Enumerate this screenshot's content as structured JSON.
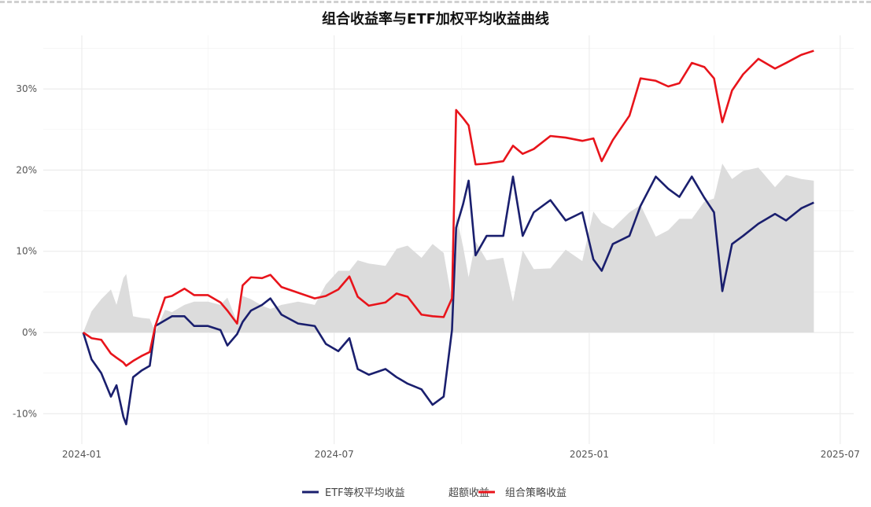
{
  "chart_data": {
    "type": "line",
    "title": "组合收益率与ETF加权平均收益曲线",
    "xlabel": "",
    "ylabel": "",
    "x_ticks": [
      "2024-01",
      "2024-07",
      "2025-01",
      "2025-07"
    ],
    "x_range": [
      "2023-12-10",
      "2025-07-12"
    ],
    "y_ticks": [
      "-10%",
      "0%",
      "10%",
      "20%",
      "30%"
    ],
    "ylim": [
      -14,
      37
    ],
    "grid": true,
    "legend_position": "bottom",
    "dates": [
      "2024-01-02",
      "2024-01-08",
      "2024-01-15",
      "2024-01-22",
      "2024-01-26",
      "2024-01-31",
      "2024-02-02",
      "2024-02-07",
      "2024-02-13",
      "2024-02-19",
      "2024-02-23",
      "2024-03-01",
      "2024-03-06",
      "2024-03-15",
      "2024-03-22",
      "2024-04-01",
      "2024-04-10",
      "2024-04-15",
      "2024-04-22",
      "2024-04-26",
      "2024-05-02",
      "2024-05-10",
      "2024-05-16",
      "2024-05-24",
      "2024-06-05",
      "2024-06-17",
      "2024-06-25",
      "2024-07-04",
      "2024-07-12",
      "2024-07-18",
      "2024-07-26",
      "2024-08-07",
      "2024-08-15",
      "2024-08-23",
      "2024-09-02",
      "2024-09-10",
      "2024-09-18",
      "2024-09-24",
      "2024-09-27",
      "2024-10-02",
      "2024-10-06",
      "2024-10-11",
      "2024-10-19",
      "2024-10-31",
      "2024-11-07",
      "2024-11-14",
      "2024-11-22",
      "2024-12-04",
      "2024-12-15",
      "2024-12-27",
      "2025-01-04",
      "2025-01-10",
      "2025-01-18",
      "2025-01-30",
      "2025-02-07",
      "2025-02-18",
      "2025-02-27",
      "2025-03-07",
      "2025-03-16",
      "2025-03-25",
      "2025-04-01",
      "2025-04-07",
      "2025-04-14",
      "2025-04-22",
      "2025-05-03",
      "2025-05-15",
      "2025-05-23",
      "2025-06-03",
      "2025-06-12"
    ],
    "series": [
      {
        "name": "ETF等权平均收益",
        "color": "#1a1f6e",
        "values": [
          0,
          -3.3,
          -5.0,
          -7.9,
          -6.5,
          -10.4,
          -11.3,
          -5.5,
          -4.7,
          -4.1,
          0.8,
          1.5,
          2.0,
          2.0,
          0.8,
          0.8,
          0.3,
          -1.6,
          -0.2,
          1.3,
          2.7,
          3.4,
          4.2,
          2.2,
          1.1,
          0.8,
          -1.4,
          -2.3,
          -0.7,
          -4.5,
          -5.2,
          -4.5,
          -5.5,
          -6.3,
          -7.0,
          -8.9,
          -7.9,
          0.3,
          12.9,
          15.8,
          18.7,
          9.5,
          11.9,
          11.9,
          19.2,
          11.9,
          14.8,
          16.3,
          13.8,
          14.8,
          9.0,
          7.6,
          10.9,
          11.9,
          15.6,
          19.2,
          17.7,
          16.7,
          19.2,
          16.6,
          14.8,
          5.1,
          10.9,
          11.9,
          13.4,
          14.6,
          13.8,
          15.3,
          16.0
        ]
      },
      {
        "name": "超额收益",
        "color": "#dcdcdc",
        "type": "area",
        "derived": "组合策略收益 - ETF等权平均收益"
      },
      {
        "name": "组合策略收益",
        "color": "#e8141b",
        "values": [
          0,
          -0.7,
          -0.9,
          -2.6,
          -3.1,
          -3.7,
          -4.1,
          -3.5,
          -2.9,
          -2.4,
          0.8,
          4.3,
          4.5,
          5.4,
          4.6,
          4.6,
          3.7,
          2.7,
          1.1,
          5.8,
          6.8,
          6.7,
          7.1,
          5.6,
          4.9,
          4.2,
          4.5,
          5.3,
          6.9,
          4.4,
          3.3,
          3.7,
          4.8,
          4.4,
          2.2,
          2.0,
          1.9,
          4.2,
          27.4,
          26.4,
          25.5,
          20.7,
          20.8,
          21.1,
          23.0,
          22.0,
          22.6,
          24.2,
          24.0,
          23.6,
          23.9,
          21.1,
          23.7,
          26.7,
          31.3,
          31.0,
          30.3,
          30.7,
          33.2,
          32.7,
          31.3,
          25.9,
          29.8,
          31.8,
          33.7,
          32.5,
          33.2,
          34.2,
          34.7
        ]
      }
    ]
  }
}
